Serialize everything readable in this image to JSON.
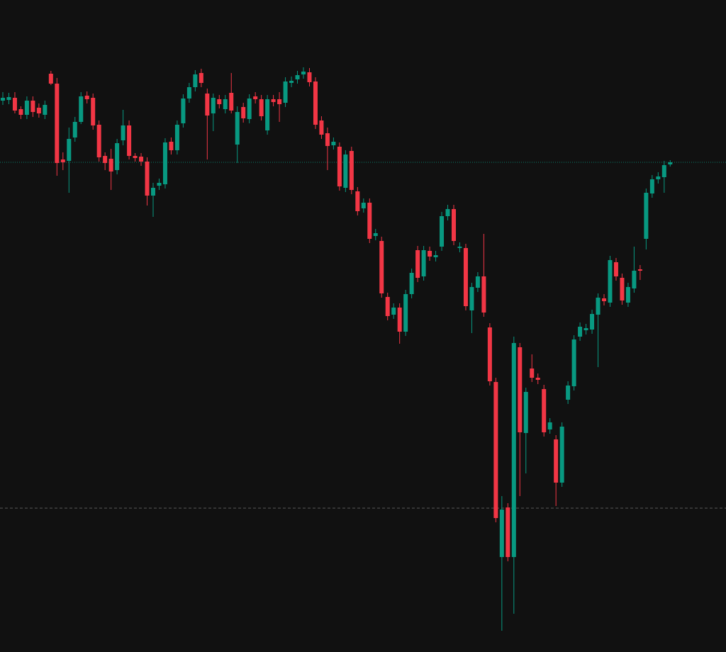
{
  "chart_data": {
    "type": "candlestick",
    "ylim": [
      0,
      920
    ],
    "up_color": "#089981",
    "down_color": "#f23645",
    "open": [
      778,
      779,
      782,
      766,
      758,
      778,
      768,
      758,
      816,
      802,
      695,
      693,
      726,
      748,
      785,
      782,
      744,
      700,
      696,
      680,
      722,
      743,
      700,
      699,
      692,
      644,
      658,
      660,
      720,
      708,
      746,
      781,
      797,
      817,
      788,
      760,
      780,
      766,
      789,
      716,
      769,
      752,
      784,
      780,
      736,
      780,
      780,
      775,
      803,
      808,
      815,
      818,
      805,
      750,
      732,
      715,
      713,
      655,
      707,
      650,
      626,
      634,
      587,
      580,
      501,
      476,
      486,
      452,
      505,
      567,
      530,
      566,
      557,
      572,
      615,
      625,
      570,
      570,
      482,
      514,
      530,
      458,
      381,
      134,
      204,
      134,
      430,
      309,
      400,
      387,
      371,
      314,
      300,
      239,
      356,
      375,
      445,
      454,
      455,
      476,
      499,
      493,
      550,
      528,
      493,
      513,
      540,
      583,
      647,
      667,
      670,
      688
    ],
    "high": [
      790,
      789,
      790,
      770,
      784,
      784,
      774,
      778,
      820,
      810,
      705,
      740,
      755,
      790,
      791,
      788,
      750,
      705,
      710,
      724,
      765,
      750,
      704,
      704,
      698,
      662,
      668,
      725,
      726,
      750,
      787,
      803,
      821,
      823,
      795,
      788,
      786,
      786,
      817,
      770,
      775,
      787,
      790,
      786,
      786,
      786,
      790,
      811,
      812,
      820,
      825,
      824,
      811,
      756,
      740,
      726,
      719,
      708,
      713,
      656,
      640,
      640,
      597,
      586,
      507,
      492,
      492,
      511,
      541,
      573,
      573,
      572,
      566,
      621,
      631,
      631,
      578,
      576,
      521,
      536,
      590,
      464,
      387,
      220,
      210,
      445,
      436,
      373,
      420,
      393,
      377,
      330,
      306,
      324,
      382,
      447,
      465,
      463,
      483,
      506,
      505,
      559,
      556,
      534,
      521,
      572,
      546,
      654,
      673,
      677,
      693,
      694
    ],
    "low": [
      772,
      773,
      760,
      752,
      752,
      755,
      754,
      752,
      800,
      672,
      680,
      648,
      720,
      745,
      774,
      737,
      692,
      680,
      652,
      674,
      715,
      695,
      692,
      686,
      630,
      614,
      652,
      654,
      702,
      702,
      740,
      775,
      791,
      797,
      695,
      735,
      767,
      760,
      760,
      690,
      747,
      746,
      774,
      750,
      730,
      770,
      748,
      769,
      797,
      802,
      809,
      798,
      738,
      724,
      680,
      709,
      651,
      649,
      646,
      616,
      620,
      577,
      581,
      500,
      468,
      470,
      435,
      446,
      499,
      522,
      524,
      552,
      551,
      566,
      609,
      574,
      564,
      482,
      450,
      508,
      473,
      376,
      183,
      30,
      128,
      54,
      220,
      252,
      381,
      378,
      304,
      308,
      206,
      233,
      350,
      369,
      439,
      448,
      449,
      402,
      489,
      487,
      524,
      490,
      487,
      507,
      525,
      568,
      641,
      661,
      648,
      685
    ],
    "close": [
      782,
      783,
      764,
      758,
      778,
      762,
      760,
      772,
      802,
      690,
      691,
      724,
      748,
      784,
      780,
      743,
      698,
      690,
      678,
      718,
      743,
      700,
      697,
      692,
      644,
      655,
      662,
      719,
      708,
      744,
      781,
      797,
      815,
      803,
      757,
      782,
      773,
      780,
      764,
      762,
      753,
      781,
      780,
      756,
      780,
      776,
      773,
      805,
      806,
      814,
      819,
      804,
      744,
      730,
      714,
      720,
      657,
      702,
      652,
      622,
      634,
      583,
      591,
      506,
      474,
      486,
      452,
      505,
      535,
      528,
      567,
      558,
      560,
      615,
      625,
      580,
      572,
      488,
      515,
      530,
      479,
      382,
      189,
      201,
      134,
      436,
      310,
      367,
      387,
      384,
      310,
      324,
      239,
      318,
      376,
      441,
      459,
      457,
      477,
      500,
      495,
      553,
      530,
      496,
      515,
      538,
      538,
      648,
      667,
      671,
      687,
      691
    ],
    "price_lines": [
      {
        "value": 691,
        "color": "#089981",
        "style": "dotted"
      },
      {
        "value": 203,
        "color": "#6b6b6b",
        "style": "dashed"
      }
    ]
  }
}
